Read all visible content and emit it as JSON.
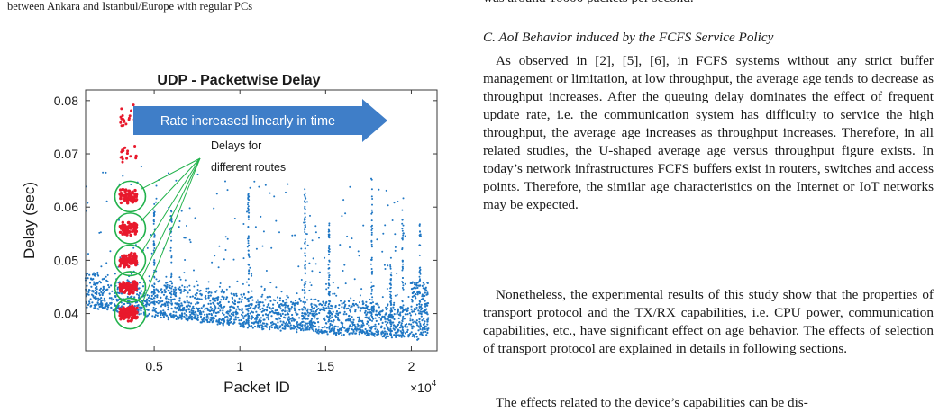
{
  "left_text": {
    "caption_tail": "between Ankara and Istanbul/Europe with regular PCs"
  },
  "figure": {
    "annotation_arrow": "Rate increased linearly in time",
    "annotation_routes": "Delays for different routes",
    "annotation_routes_line1": "Delays for",
    "annotation_routes_line2": "different routes",
    "exponent_label": "×10",
    "exponent_power": "4",
    "colors": {
      "blue_points": "#1f77c4",
      "red_points": "#e8192c",
      "arrow_fill": "#3f7ec8",
      "circle_stroke": "#22b24c"
    }
  },
  "chart_data": {
    "type": "scatter",
    "title": "UDP - Packetwise Delay",
    "xlabel": "Packet ID",
    "ylabel": "Delay (sec)",
    "xlim": [
      1000,
      21500
    ],
    "ylim": [
      0.033,
      0.082
    ],
    "x_ticks": [
      5000,
      10000,
      15000,
      20000
    ],
    "x_tick_labels": [
      "0.5",
      "1",
      "1.5",
      "2"
    ],
    "x_multiplier": "×10^4",
    "y_ticks": [
      0.04,
      0.05,
      0.06,
      0.07,
      0.08
    ],
    "y_tick_labels": [
      "0.04",
      "0.05",
      "0.06",
      "0.07",
      "0.08"
    ],
    "grid": false,
    "series": [
      {
        "color": "#1f77c4",
        "baseline_trend": [
          [
            1000,
            0.0415
          ],
          [
            5000,
            0.0395
          ],
          [
            10000,
            0.0378
          ],
          [
            15000,
            0.0365
          ],
          [
            20000,
            0.0355
          ]
        ],
        "upper_band_trend": [
          [
            1000,
            0.0475
          ],
          [
            5000,
            0.0455
          ],
          [
            10000,
            0.0435
          ],
          [
            15000,
            0.0425
          ],
          [
            19500,
            0.0415
          ]
        ],
        "vertical_clusters_x": [
          5000,
          6000,
          10500,
          13800,
          15200,
          17700,
          18800,
          19500,
          20500
        ],
        "block_region": {
          "x": [
            20000,
            21000
          ],
          "y": [
            0.035,
            0.046
          ]
        }
      },
      {
        "color": "#e8192c",
        "x_range": [
          3000,
          4000
        ],
        "cluster_centers_y": [
          0.04,
          0.045,
          0.05,
          0.056,
          0.062,
          0.07,
          0.077
        ]
      }
    ],
    "route_circles_y": [
      0.04,
      0.045,
      0.05,
      0.056,
      0.062
    ]
  },
  "right_text": {
    "line0": "was around 10000 packets per second.",
    "section_title": "C. AoI Behavior induced by the FCFS Service Policy",
    "para1": "As observed in [2], [5], [6], in FCFS systems without any strict buffer management or limitation, at low throughput, the average age tends to decrease as throughput increases. After the queuing delay dominates the effect of frequent update rate, i.e. the communication system has difficulty to service the high throughput, the average age increases as throughput increases. Therefore, in all related studies, the U-shaped average age versus throughput figure exists. In today’s network infrastructures FCFS buffers exist in routers, switches and access points. Therefore, the similar age characteristics on the Internet or IoT networks may be expected.",
    "para2": "Nonetheless, the experimental results of this study show that the properties of transport protocol and the TX/RX capabilities, i.e. CPU power, communication capabilities, etc., have significant effect on age behavior. The effects of selection of transport protocol are explained in details in following sections.",
    "para3": "The effects related to the device’s capabilities can be dis-"
  }
}
